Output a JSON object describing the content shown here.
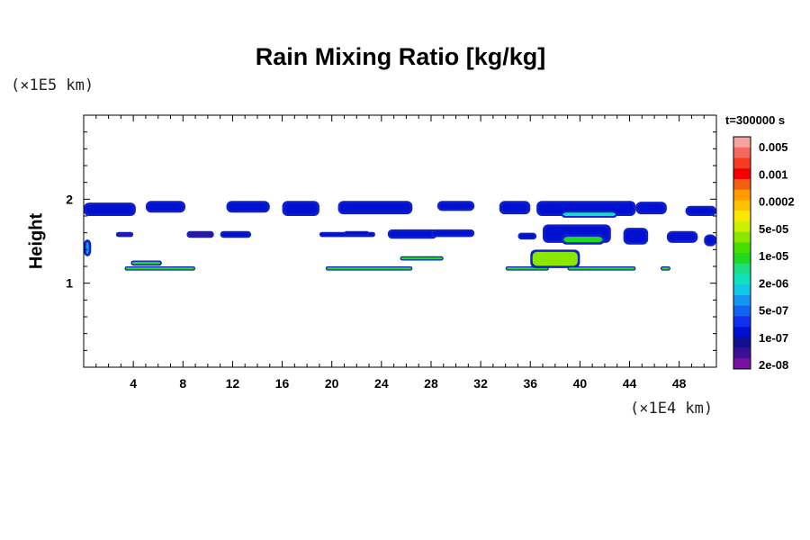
{
  "chart_data": {
    "type": "heatmap",
    "title": "Rain Mixing Ratio [kg/kg]",
    "xlabel": "",
    "ylabel": "Height",
    "x_unit": "(×1E4 km)",
    "y_unit": "(×1E5 km)",
    "time_label": "t=300000 s",
    "xlim": [
      0,
      51
    ],
    "ylim": [
      0,
      3
    ],
    "x_ticks": [
      4,
      8,
      12,
      16,
      20,
      24,
      28,
      32,
      36,
      40,
      44,
      48
    ],
    "y_ticks": [
      1,
      2
    ],
    "colorbar": {
      "labels": [
        "0.005",
        "0.001",
        "0.0002",
        "5e-05",
        "1e-05",
        "2e-06",
        "5e-07",
        "1e-07",
        "2e-08"
      ],
      "colors_top_to_bottom": [
        "#f7a3a0",
        "#f56a5c",
        "#f53b22",
        "#f50000",
        "#f06010",
        "#ff9c00",
        "#ffc000",
        "#ffe600",
        "#cdf000",
        "#8ae800",
        "#48de00",
        "#20d820",
        "#18e080",
        "#10e0c0",
        "#10c8e8",
        "#1496f0",
        "#1464f0",
        "#1030f0",
        "#0010d0",
        "#10108c",
        "#3c1096",
        "#7810a0"
      ]
    },
    "regions": [
      {
        "x0": 0.0,
        "x1": 4.2,
        "y0": 1.8,
        "y1": 1.96,
        "level": "1e-07"
      },
      {
        "x0": 5.0,
        "x1": 8.2,
        "y0": 1.84,
        "y1": 1.98,
        "level": "1e-07"
      },
      {
        "x0": 11.5,
        "x1": 15.0,
        "y0": 1.84,
        "y1": 1.98,
        "level": "1e-07"
      },
      {
        "x0": 16.0,
        "x1": 19.0,
        "y0": 1.8,
        "y1": 1.98,
        "level": "1e-07"
      },
      {
        "x0": 20.5,
        "x1": 26.5,
        "y0": 1.82,
        "y1": 1.98,
        "level": "1e-07"
      },
      {
        "x0": 28.5,
        "x1": 31.5,
        "y0": 1.86,
        "y1": 1.98,
        "level": "1e-07"
      },
      {
        "x0": 33.5,
        "x1": 36.0,
        "y0": 1.82,
        "y1": 1.98,
        "level": "1e-07"
      },
      {
        "x0": 36.5,
        "x1": 44.5,
        "y0": 1.8,
        "y1": 1.98,
        "level": "1e-07"
      },
      {
        "x0": 44.5,
        "x1": 47.0,
        "y0": 1.82,
        "y1": 1.97,
        "level": "1e-07"
      },
      {
        "x0": 48.5,
        "x1": 51.0,
        "y0": 1.8,
        "y1": 1.92,
        "level": "1e-07"
      },
      {
        "x0": 38.5,
        "x1": 43.0,
        "y0": 1.78,
        "y1": 1.86,
        "level": "2e-06"
      },
      {
        "x0": 2.6,
        "x1": 4.0,
        "y0": 1.55,
        "y1": 1.61,
        "level": "2e-08"
      },
      {
        "x0": 8.3,
        "x1": 10.5,
        "y0": 1.54,
        "y1": 1.62,
        "level": "2e-08"
      },
      {
        "x0": 11.0,
        "x1": 13.5,
        "y0": 1.54,
        "y1": 1.62,
        "level": "1e-07"
      },
      {
        "x0": 19.0,
        "x1": 23.5,
        "y0": 1.55,
        "y1": 1.61,
        "level": "1e-07"
      },
      {
        "x0": 21.0,
        "x1": 23.0,
        "y0": 1.57,
        "y1": 1.62,
        "level": "1e-07"
      },
      {
        "x0": 24.5,
        "x1": 28.5,
        "y0": 1.53,
        "y1": 1.64,
        "level": "1e-07"
      },
      {
        "x0": 28.0,
        "x1": 31.5,
        "y0": 1.55,
        "y1": 1.64,
        "level": "1e-07"
      },
      {
        "x0": 37.0,
        "x1": 42.5,
        "y0": 1.48,
        "y1": 1.7,
        "level": "1e-07"
      },
      {
        "x0": 38.5,
        "x1": 42.0,
        "y0": 1.46,
        "y1": 1.58,
        "level": "1e-05"
      },
      {
        "x0": 43.5,
        "x1": 45.5,
        "y0": 1.46,
        "y1": 1.66,
        "level": "1e-07"
      },
      {
        "x0": 47.0,
        "x1": 49.5,
        "y0": 1.48,
        "y1": 1.62,
        "level": "1e-07"
      },
      {
        "x0": 50.0,
        "x1": 51.0,
        "y0": 1.44,
        "y1": 1.58,
        "level": "1e-07"
      },
      {
        "x0": 35.0,
        "x1": 36.5,
        "y0": 1.52,
        "y1": 1.6,
        "level": "1e-07"
      },
      {
        "x0": 0.0,
        "x1": 0.6,
        "y0": 1.32,
        "y1": 1.52,
        "level": "5e-07"
      },
      {
        "x0": 3.8,
        "x1": 6.3,
        "y0": 1.21,
        "y1": 1.27,
        "level": "1e-05"
      },
      {
        "x0": 3.3,
        "x1": 9.0,
        "y0": 1.15,
        "y1": 1.2,
        "level": "1e-05"
      },
      {
        "x0": 19.5,
        "x1": 26.5,
        "y0": 1.15,
        "y1": 1.2,
        "level": "1e-05"
      },
      {
        "x0": 25.5,
        "x1": 29.0,
        "y0": 1.27,
        "y1": 1.32,
        "level": "1e-05"
      },
      {
        "x0": 34.0,
        "x1": 37.5,
        "y0": 1.15,
        "y1": 1.2,
        "level": "1e-05"
      },
      {
        "x0": 36.0,
        "x1": 40.0,
        "y0": 1.18,
        "y1": 1.4,
        "level": "5e-05"
      },
      {
        "x0": 39.0,
        "x1": 44.5,
        "y0": 1.15,
        "y1": 1.2,
        "level": "1e-05"
      },
      {
        "x0": 46.5,
        "x1": 47.3,
        "y0": 1.15,
        "y1": 1.2,
        "level": "1e-05"
      }
    ]
  }
}
